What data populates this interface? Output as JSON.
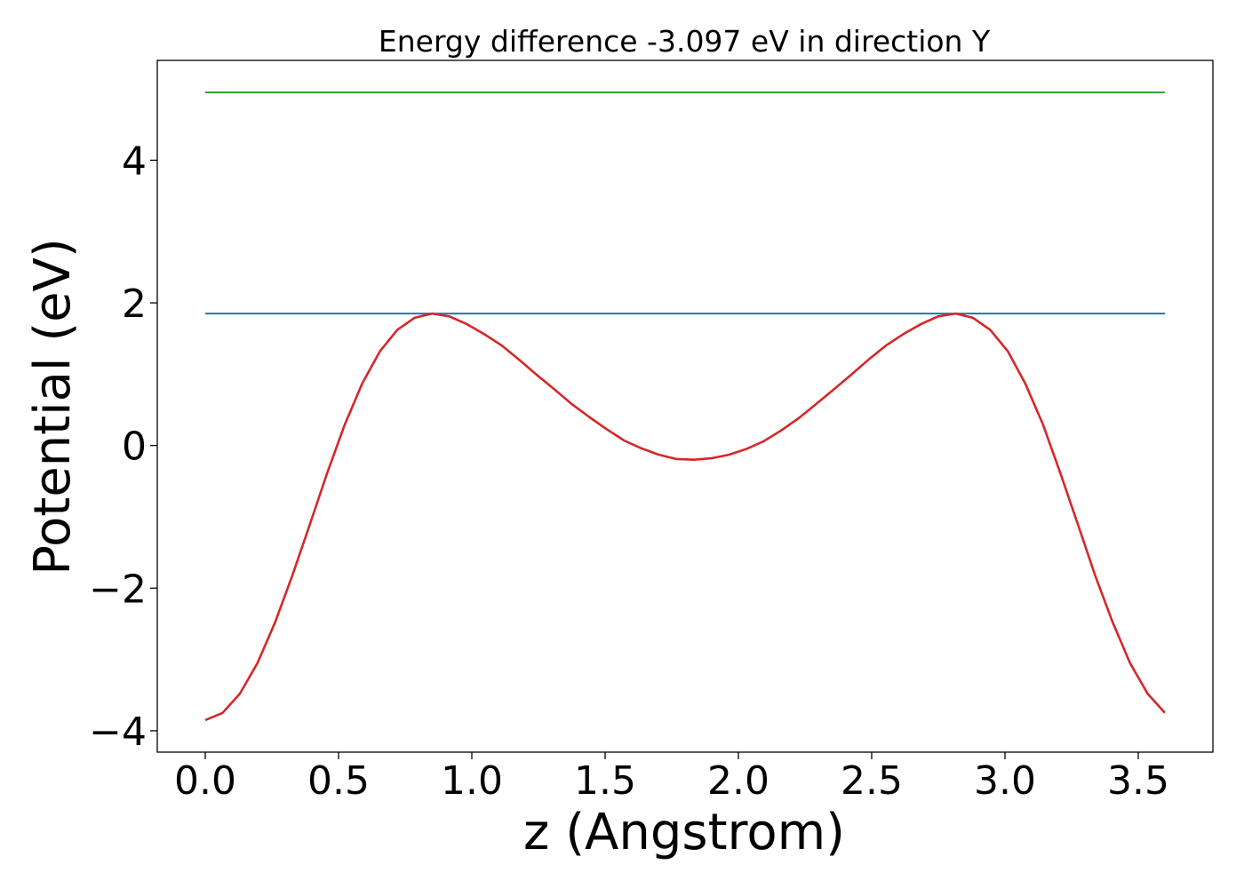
{
  "chart_data": {
    "type": "line",
    "title": "Energy difference -3.097 eV in direction Y",
    "xlabel": "z (Angstrom)",
    "ylabel": "Potential (eV)",
    "xlim": [
      -0.18,
      3.78
    ],
    "ylim": [
      -4.3,
      5.4
    ],
    "xticks": [
      0.0,
      0.5,
      1.0,
      1.5,
      2.0,
      2.5,
      3.0,
      3.5
    ],
    "xtick_labels": [
      "0.0",
      "0.5",
      "1.0",
      "1.5",
      "2.0",
      "2.5",
      "3.0",
      "3.5"
    ],
    "yticks": [
      -4,
      -2,
      0,
      2,
      4
    ],
    "ytick_labels": [
      "−4",
      "−2",
      "0",
      "2",
      "4"
    ],
    "grid": false,
    "series": [
      {
        "color": "#2ca02c",
        "x": [
          0.0,
          3.6
        ],
        "y": [
          4.95,
          4.95
        ]
      },
      {
        "color": "#1f77b4",
        "x": [
          0.0,
          3.6
        ],
        "y": [
          1.85,
          1.85
        ]
      },
      {
        "color": "#d62728",
        "x": [
          0.0,
          0.065,
          0.13,
          0.196,
          0.262,
          0.327,
          0.393,
          0.458,
          0.524,
          0.589,
          0.655,
          0.72,
          0.785,
          0.851,
          0.916,
          0.982,
          1.047,
          1.113,
          1.178,
          1.244,
          1.309,
          1.375,
          1.44,
          1.505,
          1.571,
          1.636,
          1.702,
          1.767,
          1.833,
          1.898,
          1.964,
          2.029,
          2.095,
          2.16,
          2.225,
          2.291,
          2.356,
          2.422,
          2.487,
          2.553,
          2.618,
          2.684,
          2.749,
          2.815,
          2.88,
          2.945,
          3.011,
          3.076,
          3.142,
          3.207,
          3.273,
          3.338,
          3.404,
          3.469,
          3.535,
          3.6
        ],
        "y": [
          -3.85,
          -3.75,
          -3.48,
          -3.05,
          -2.48,
          -1.82,
          -1.1,
          -0.38,
          0.3,
          0.87,
          1.32,
          1.62,
          1.79,
          1.85,
          1.81,
          1.7,
          1.56,
          1.4,
          1.2,
          0.99,
          0.79,
          0.58,
          0.4,
          0.23,
          0.07,
          -0.04,
          -0.13,
          -0.19,
          -0.2,
          -0.18,
          -0.13,
          -0.05,
          0.06,
          0.21,
          0.38,
          0.58,
          0.78,
          0.99,
          1.2,
          1.4,
          1.56,
          1.7,
          1.81,
          1.85,
          1.79,
          1.62,
          1.32,
          0.87,
          0.3,
          -0.38,
          -1.1,
          -1.82,
          -2.48,
          -3.05,
          -3.48,
          -3.75
        ]
      }
    ]
  }
}
